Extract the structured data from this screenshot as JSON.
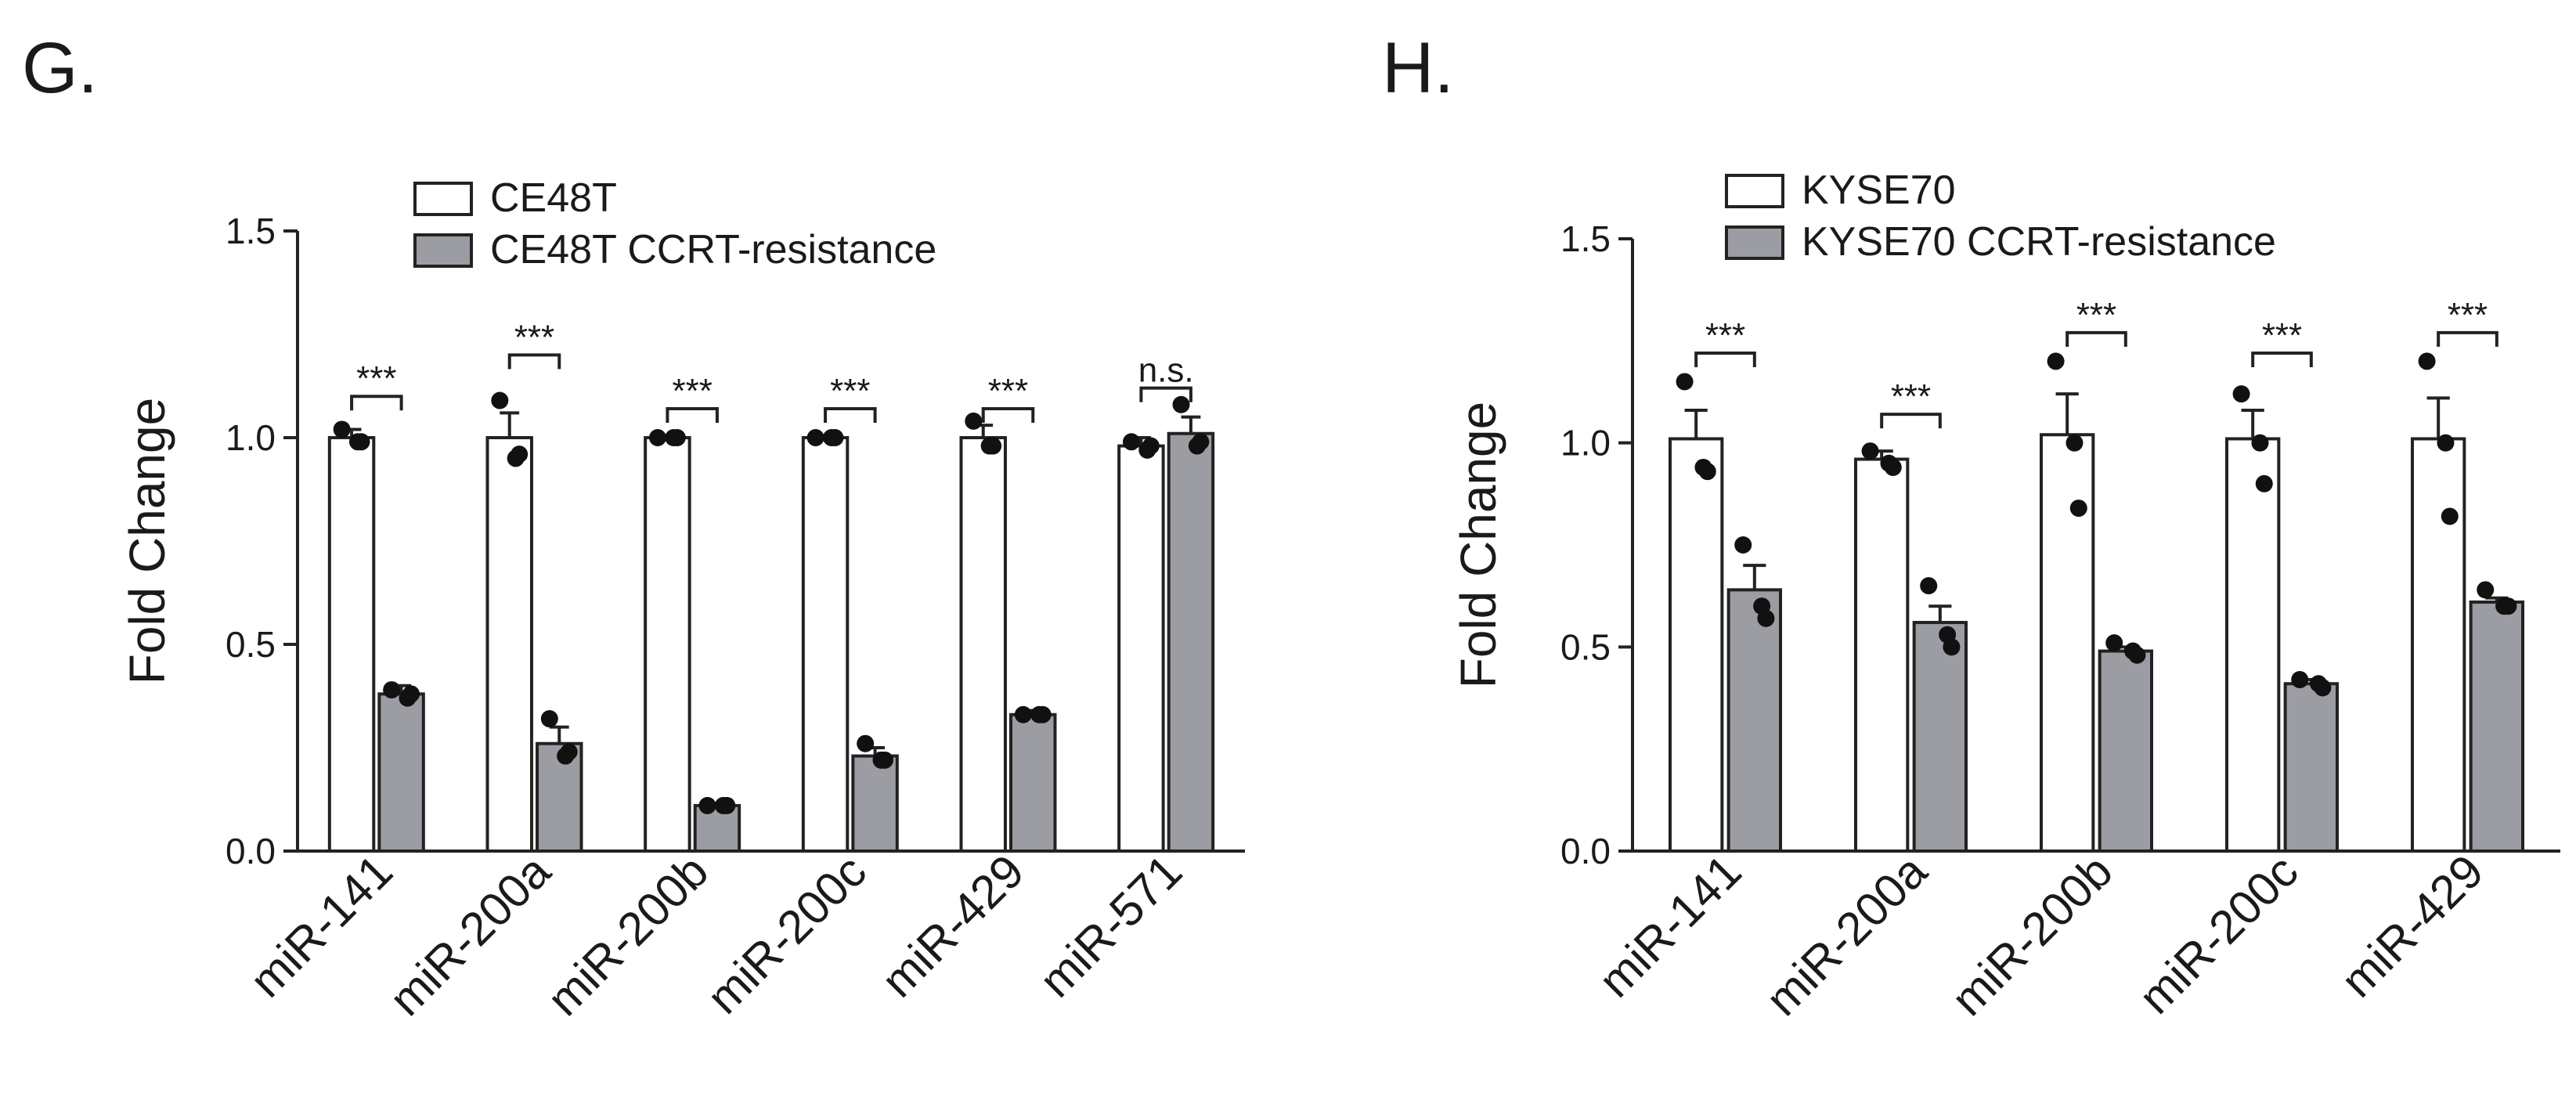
{
  "panels": [
    {
      "letter": "G.",
      "chart_data": {
        "type": "bar",
        "ylabel": "Fold Change",
        "ylim": [
          0,
          1.5
        ],
        "yticks": [
          "0.0",
          "0.5",
          "1.0",
          "1.5"
        ],
        "categories": [
          "miR-141",
          "miR-200a",
          "miR-200b",
          "miR-200c",
          "miR-429",
          "miR-571"
        ],
        "series": [
          {
            "name": "CE48T",
            "color": "#ffffff",
            "values": [
              1.0,
              1.0,
              1.0,
              1.0,
              1.0,
              0.98
            ],
            "errors": [
              0.02,
              0.06,
              0.005,
              0.005,
              0.03,
              0.02
            ],
            "points": [
              [
                1.02,
                0.99,
                0.99
              ],
              [
                1.09,
                0.95,
                0.96
              ],
              [
                1.0,
                1.0,
                1.0
              ],
              [
                1.0,
                1.0,
                1.0
              ],
              [
                1.04,
                0.98,
                0.98
              ],
              [
                0.99,
                0.97,
                0.98
              ]
            ]
          },
          {
            "name": "CE48T CCRT-resistance",
            "color": "#9c9ca3",
            "values": [
              0.38,
              0.26,
              0.11,
              0.23,
              0.33,
              1.01
            ],
            "errors": [
              0.02,
              0.04,
              0.005,
              0.02,
              0.01,
              0.04
            ],
            "points": [
              [
                0.39,
                0.37,
                0.38
              ],
              [
                0.32,
                0.23,
                0.24
              ],
              [
                0.11,
                0.11,
                0.11
              ],
              [
                0.26,
                0.22,
                0.22
              ],
              [
                0.33,
                0.33,
                0.33
              ],
              [
                1.08,
                0.98,
                0.99
              ]
            ]
          }
        ],
        "significance": [
          "***",
          "***",
          "***",
          "***",
          "***",
          "n.s."
        ],
        "sig_y": [
          1.1,
          1.2,
          1.07,
          1.07,
          1.07,
          1.12
        ],
        "legend_position": "top-center"
      }
    },
    {
      "letter": "H.",
      "chart_data": {
        "type": "bar",
        "ylabel": "Fold Change",
        "ylim": [
          0,
          1.5
        ],
        "yticks": [
          "0.0",
          "0.5",
          "1.0",
          "1.5"
        ],
        "categories": [
          "miR-141",
          "miR-200a",
          "miR-200b",
          "miR-200c",
          "miR-429"
        ],
        "series": [
          {
            "name": "KYSE70",
            "color": "#ffffff",
            "values": [
              1.01,
              0.96,
              1.02,
              1.01,
              1.01
            ],
            "errors": [
              0.07,
              0.02,
              0.1,
              0.07,
              0.1
            ],
            "points": [
              [
                1.15,
                0.94,
                0.93
              ],
              [
                0.98,
                0.95,
                0.94
              ],
              [
                1.2,
                1.0,
                0.84
              ],
              [
                1.12,
                1.0,
                0.9
              ],
              [
                1.2,
                1.0,
                0.82
              ]
            ]
          },
          {
            "name": "KYSE70 CCRT-resistance",
            "color": "#9c9ca3",
            "values": [
              0.64,
              0.56,
              0.49,
              0.41,
              0.61
            ],
            "errors": [
              0.06,
              0.04,
              0.01,
              0.01,
              0.01
            ],
            "points": [
              [
                0.75,
                0.6,
                0.57
              ],
              [
                0.65,
                0.53,
                0.5
              ],
              [
                0.51,
                0.49,
                0.48
              ],
              [
                0.42,
                0.41,
                0.4
              ],
              [
                0.64,
                0.6,
                0.6
              ]
            ]
          }
        ],
        "significance": [
          "***",
          "***",
          "***",
          "***",
          "***"
        ],
        "sig_y": [
          1.22,
          1.07,
          1.27,
          1.22,
          1.27
        ],
        "legend_position": "top-center"
      }
    }
  ]
}
